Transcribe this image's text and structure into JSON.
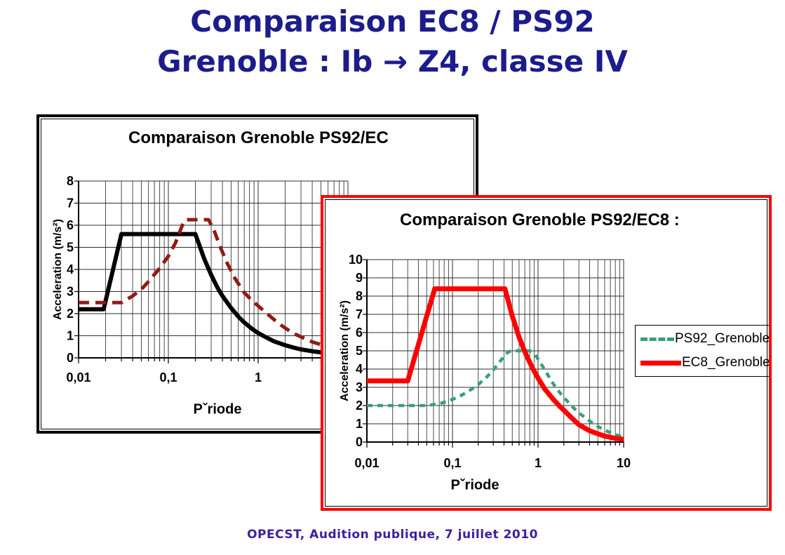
{
  "slide": {
    "title_line1": "Comparaison EC8 / PS92",
    "title_line2": "Grenoble : Ib → Z4, classe IV",
    "footer": "OPECST, Audition publique, 7 juillet 2010",
    "colors": {
      "title_text": "#1c1c8c",
      "footer_text": "#3c1f9e",
      "back_window_border": "#000000",
      "front_window_border": "#ff0000",
      "grid_line": "#4d4d4d"
    }
  },
  "chart_data": [
    {
      "id": "back",
      "type": "line",
      "title": "Comparaison Grenoble PS92/EC",
      "xlabel": "Pˇriode",
      "ylabel": "Acceleration (m/s²)",
      "x_scale": "log",
      "xlim": [
        0.01,
        10
      ],
      "ylim": [
        0,
        8
      ],
      "x_ticks": [
        "0,01",
        "0,1",
        "1"
      ],
      "y_ticks": [
        "0",
        "1",
        "2",
        "3",
        "4",
        "5",
        "6",
        "7",
        "8"
      ],
      "grid": true,
      "legend": null,
      "series": [
        {
          "id": "solid-black",
          "color": "#000000",
          "width": 6,
          "dash": null,
          "points": [
            [
              0.01,
              2.2
            ],
            [
              0.019,
              2.2
            ],
            [
              0.03,
              5.6
            ],
            [
              0.2,
              5.6
            ],
            [
              0.25,
              4.5
            ],
            [
              0.3,
              3.75
            ],
            [
              0.35,
              3.2
            ],
            [
              0.4,
              2.8
            ],
            [
              0.5,
              2.25
            ],
            [
              0.6,
              1.87
            ],
            [
              0.7,
              1.6
            ],
            [
              0.85,
              1.32
            ],
            [
              1,
              1.12
            ],
            [
              1.2,
              0.95
            ],
            [
              1.5,
              0.75
            ],
            [
              2,
              0.57
            ],
            [
              2.5,
              0.46
            ],
            [
              3,
              0.38
            ],
            [
              4,
              0.3
            ],
            [
              5,
              0.25
            ],
            [
              7,
              0.2
            ],
            [
              9,
              0.17
            ]
          ]
        },
        {
          "id": "dashed-darkred",
          "color": "#8e1d15",
          "width": 5,
          "dash": "15 9",
          "points": [
            [
              0.01,
              2.5
            ],
            [
              0.03,
              2.5
            ],
            [
              0.04,
              2.8
            ],
            [
              0.05,
              3.1
            ],
            [
              0.06,
              3.45
            ],
            [
              0.08,
              4.05
            ],
            [
              0.1,
              4.6
            ],
            [
              0.12,
              5.2
            ],
            [
              0.14,
              5.9
            ],
            [
              0.15,
              6.2
            ],
            [
              0.16,
              6.25
            ],
            [
              0.28,
              6.25
            ],
            [
              0.32,
              5.8
            ],
            [
              0.38,
              5.0
            ],
            [
              0.45,
              4.3
            ],
            [
              0.55,
              3.6
            ],
            [
              0.7,
              2.95
            ],
            [
              0.85,
              2.6
            ],
            [
              1,
              2.35
            ],
            [
              1.3,
              1.95
            ],
            [
              1.7,
              1.55
            ],
            [
              2,
              1.35
            ],
            [
              2.5,
              1.1
            ],
            [
              3,
              0.95
            ],
            [
              4,
              0.72
            ],
            [
              5,
              0.6
            ],
            [
              7,
              0.45
            ],
            [
              9,
              0.36
            ]
          ]
        }
      ]
    },
    {
      "id": "front",
      "type": "line",
      "title": "Comparaison Grenoble PS92/EC8 :",
      "xlabel": "Pˇriode",
      "ylabel": "Acceleration (m/s²)",
      "x_scale": "log",
      "xlim": [
        0.01,
        10
      ],
      "ylim": [
        0,
        10
      ],
      "x_ticks": [
        "0,01",
        "0,1",
        "1",
        "10"
      ],
      "y_ticks": [
        "0",
        "1",
        "2",
        "3",
        "4",
        "5",
        "6",
        "7",
        "8",
        "9",
        "10"
      ],
      "grid": true,
      "legend": {
        "position": "right",
        "entries": [
          {
            "label": "PS92_Grenoble",
            "color": "#38a076",
            "style": "dashed"
          },
          {
            "label": "EC8_Grenoble",
            "color": "#ff0000",
            "style": "solid"
          }
        ]
      },
      "series": [
        {
          "id": "PS92_Grenoble",
          "color": "#38a076",
          "width": 4.5,
          "dash": "8 7",
          "points": [
            [
              0.01,
              2.0
            ],
            [
              0.05,
              2.0
            ],
            [
              0.07,
              2.1
            ],
            [
              0.09,
              2.25
            ],
            [
              0.12,
              2.5
            ],
            [
              0.15,
              2.75
            ],
            [
              0.2,
              3.15
            ],
            [
              0.25,
              3.55
            ],
            [
              0.3,
              3.95
            ],
            [
              0.35,
              4.35
            ],
            [
              0.4,
              4.7
            ],
            [
              0.45,
              4.95
            ],
            [
              0.5,
              5.0
            ],
            [
              0.8,
              5.0
            ],
            [
              0.9,
              4.85
            ],
            [
              1,
              4.55
            ],
            [
              1.2,
              3.95
            ],
            [
              1.5,
              3.2
            ],
            [
              1.8,
              2.7
            ],
            [
              2,
              2.45
            ],
            [
              2.5,
              1.95
            ],
            [
              3,
              1.6
            ],
            [
              4,
              1.15
            ],
            [
              5,
              0.85
            ],
            [
              6,
              0.65
            ],
            [
              8,
              0.4
            ],
            [
              10,
              0.27
            ]
          ]
        },
        {
          "id": "EC8_Grenoble",
          "color": "#ff0000",
          "width": 7,
          "dash": null,
          "points": [
            [
              0.01,
              3.35
            ],
            [
              0.03,
              3.35
            ],
            [
              0.062,
              8.4
            ],
            [
              0.41,
              8.4
            ],
            [
              0.5,
              6.9
            ],
            [
              0.6,
              5.75
            ],
            [
              0.7,
              4.95
            ],
            [
              0.85,
              4.1
            ],
            [
              1,
              3.5
            ],
            [
              1.2,
              2.9
            ],
            [
              1.5,
              2.35
            ],
            [
              1.8,
              1.95
            ],
            [
              2,
              1.75
            ],
            [
              2.5,
              1.3
            ],
            [
              3,
              0.95
            ],
            [
              4,
              0.62
            ],
            [
              5,
              0.45
            ],
            [
              6,
              0.33
            ],
            [
              8,
              0.2
            ],
            [
              10,
              0.15
            ]
          ]
        }
      ]
    }
  ]
}
